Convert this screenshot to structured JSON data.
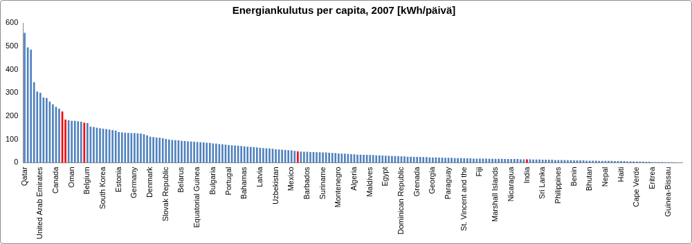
{
  "chart_data": {
    "type": "bar",
    "title": "Energiankulutus per capita, 2007 [kWh/päivä]",
    "categories": [
      "Qatar",
      null,
      null,
      null,
      null,
      "United Arab Emirates",
      null,
      null,
      null,
      null,
      "Canada",
      null,
      null,
      null,
      null,
      "Oman",
      null,
      null,
      null,
      null,
      "Belgium",
      null,
      null,
      null,
      null,
      "South Korea",
      null,
      null,
      null,
      null,
      "Estonia",
      null,
      null,
      null,
      null,
      "Germany",
      null,
      null,
      null,
      null,
      "Denmark",
      null,
      null,
      null,
      null,
      "Slovak Republic",
      null,
      null,
      null,
      null,
      "Belarus",
      null,
      null,
      null,
      null,
      "Equatorial Guinea",
      null,
      null,
      null,
      null,
      "Bulgaria",
      null,
      null,
      null,
      null,
      "Portugal",
      null,
      null,
      null,
      null,
      "Bahamas",
      null,
      null,
      null,
      null,
      "Latvia",
      null,
      null,
      null,
      null,
      "Uzbekistan",
      null,
      null,
      null,
      null,
      "Mexico",
      null,
      null,
      null,
      null,
      "Barbados",
      null,
      null,
      null,
      null,
      "Suriname",
      null,
      null,
      null,
      null,
      "Montenegro",
      null,
      null,
      null,
      null,
      "Algeria",
      null,
      null,
      null,
      null,
      "Maldives",
      null,
      null,
      null,
      null,
      "Egypt",
      null,
      null,
      null,
      null,
      "Dominican Republic",
      null,
      null,
      null,
      null,
      "Grenada",
      null,
      null,
      null,
      null,
      "Georgia",
      null,
      null,
      null,
      null,
      "Paraguay",
      null,
      null,
      null,
      null,
      "St. Vincent and the",
      null,
      null,
      null,
      null,
      "Fiji",
      null,
      null,
      null,
      null,
      "Marshall Islands",
      null,
      null,
      null,
      null,
      "Nicaragua",
      null,
      null,
      null,
      null,
      "India",
      null,
      null,
      null,
      null,
      "Sri Lanka",
      null,
      null,
      null,
      null,
      "Philippines",
      null,
      null,
      null,
      null,
      "Benin",
      null,
      null,
      null,
      null,
      "Bhutan",
      null,
      null,
      null,
      null,
      "Nepal",
      null,
      null,
      null,
      null,
      "Haiti",
      null,
      null,
      null,
      null,
      "Cape Verde",
      null,
      null,
      null,
      null,
      "Eritrea",
      null,
      null,
      null,
      null,
      "Guinea-Bissau",
      null,
      null,
      null,
      null
    ],
    "values": [
      557,
      495,
      485,
      345,
      305,
      300,
      280,
      278,
      262,
      250,
      240,
      232,
      220,
      185,
      182,
      180,
      180,
      178,
      176,
      172,
      170,
      155,
      153,
      150,
      148,
      146,
      144,
      142,
      140,
      138,
      132,
      130,
      129,
      128,
      127,
      127,
      126,
      125,
      122,
      118,
      112,
      110,
      108,
      107,
      105,
      102,
      100,
      98,
      97,
      96,
      94,
      93,
      92,
      91,
      90,
      89,
      88,
      87,
      86,
      85,
      83,
      82,
      80,
      79,
      78,
      76,
      75,
      74,
      73,
      72,
      70,
      69,
      68,
      67,
      66,
      64,
      63,
      62,
      61,
      60,
      58,
      57,
      56,
      55,
      54,
      53,
      51,
      49,
      48,
      47,
      47,
      46,
      46,
      45,
      45,
      44,
      44,
      43,
      42,
      41,
      40,
      39,
      39,
      38,
      37,
      36,
      35,
      35,
      34,
      34,
      33,
      33,
      32,
      32,
      31,
      30,
      30,
      29,
      29,
      28,
      27,
      27,
      26,
      26,
      25,
      25,
      25,
      24,
      24,
      23,
      23,
      23,
      22,
      22,
      21,
      21,
      21,
      20,
      20,
      20,
      19,
      19,
      19,
      18,
      18,
      18,
      18,
      18,
      17,
      17,
      17,
      17,
      17,
      16,
      16,
      16,
      16,
      16,
      15,
      15,
      15,
      15,
      14,
      14,
      14,
      13,
      13,
      13,
      13,
      12,
      12,
      12,
      12,
      11,
      11,
      10,
      10,
      10,
      10,
      9,
      9,
      9,
      9,
      8,
      8,
      8,
      8,
      8,
      7,
      7,
      7,
      7,
      6,
      6,
      6,
      5,
      5,
      5,
      4,
      4,
      3,
      3,
      3,
      3,
      2,
      2,
      2,
      2,
      1,
      1
    ],
    "colors": [
      "#4f81bd",
      "#4f81bd",
      "#4f81bd",
      "#4f81bd",
      "#4f81bd",
      "#4f81bd",
      "#4f81bd",
      "#4f81bd",
      "#4f81bd",
      "#4f81bd",
      "#4f81bd",
      "#4f81bd",
      "#ff0000",
      "#ff0000",
      "#4f81bd",
      "#4f81bd",
      "#4f81bd",
      "#4f81bd",
      "#4f81bd",
      "#ff0000",
      "#4f81bd",
      "#4f81bd",
      "#4f81bd",
      "#4f81bd",
      "#4f81bd",
      "#4f81bd",
      "#4f81bd",
      "#4f81bd",
      "#4f81bd",
      "#4f81bd",
      "#4f81bd",
      "#4f81bd",
      "#4f81bd",
      "#4f81bd",
      "#4f81bd",
      "#4f81bd",
      "#4f81bd",
      "#4f81bd",
      "#4f81bd",
      "#4f81bd",
      "#4f81bd",
      "#4f81bd",
      "#4f81bd",
      "#4f81bd",
      "#4f81bd",
      "#4f81bd",
      "#4f81bd",
      "#4f81bd",
      "#4f81bd",
      "#4f81bd",
      "#4f81bd",
      "#4f81bd",
      "#4f81bd",
      "#4f81bd",
      "#4f81bd",
      "#4f81bd",
      "#4f81bd",
      "#4f81bd",
      "#4f81bd",
      "#4f81bd",
      "#4f81bd",
      "#4f81bd",
      "#4f81bd",
      "#4f81bd",
      "#4f81bd",
      "#4f81bd",
      "#4f81bd",
      "#4f81bd",
      "#4f81bd",
      "#4f81bd",
      "#4f81bd",
      "#4f81bd",
      "#4f81bd",
      "#4f81bd",
      "#4f81bd",
      "#4f81bd",
      "#4f81bd",
      "#4f81bd",
      "#4f81bd",
      "#4f81bd",
      "#4f81bd",
      "#4f81bd",
      "#4f81bd",
      "#4f81bd",
      "#4f81bd",
      "#4f81bd",
      "#4f81bd",
      "#ff0000",
      "#4f81bd",
      "#4f81bd",
      "#4f81bd",
      "#4f81bd",
      "#4f81bd",
      "#4f81bd",
      "#4f81bd",
      "#4f81bd",
      "#4f81bd",
      "#4f81bd",
      "#4f81bd",
      "#4f81bd",
      "#4f81bd",
      "#4f81bd",
      "#4f81bd",
      "#4f81bd",
      "#4f81bd",
      "#4f81bd",
      "#4f81bd",
      "#4f81bd",
      "#4f81bd",
      "#4f81bd",
      "#4f81bd",
      "#4f81bd",
      "#4f81bd",
      "#4f81bd",
      "#4f81bd",
      "#4f81bd",
      "#4f81bd",
      "#4f81bd",
      "#4f81bd",
      "#4f81bd",
      "#4f81bd",
      "#4f81bd",
      "#4f81bd",
      "#4f81bd",
      "#4f81bd",
      "#4f81bd",
      "#4f81bd",
      "#4f81bd",
      "#4f81bd",
      "#4f81bd",
      "#4f81bd",
      "#4f81bd",
      "#4f81bd",
      "#4f81bd",
      "#4f81bd",
      "#4f81bd",
      "#4f81bd",
      "#4f81bd",
      "#4f81bd",
      "#4f81bd",
      "#4f81bd",
      "#4f81bd",
      "#4f81bd",
      "#4f81bd",
      "#4f81bd",
      "#4f81bd",
      "#4f81bd",
      "#4f81bd",
      "#4f81bd",
      "#4f81bd",
      "#4f81bd",
      "#4f81bd",
      "#4f81bd",
      "#4f81bd",
      "#4f81bd",
      "#4f81bd",
      "#4f81bd",
      "#4f81bd",
      "#4f81bd",
      "#4f81bd",
      "#ff0000",
      "#4f81bd",
      "#4f81bd",
      "#4f81bd",
      "#4f81bd",
      "#4f81bd",
      "#4f81bd",
      "#4f81bd",
      "#4f81bd",
      "#4f81bd",
      "#4f81bd",
      "#4f81bd",
      "#4f81bd",
      "#4f81bd",
      "#4f81bd",
      "#4f81bd",
      "#4f81bd",
      "#4f81bd",
      "#4f81bd",
      "#4f81bd",
      "#4f81bd",
      "#4f81bd",
      "#4f81bd",
      "#4f81bd",
      "#4f81bd",
      "#4f81bd",
      "#4f81bd",
      "#4f81bd",
      "#4f81bd",
      "#4f81bd",
      "#4f81bd",
      "#4f81bd",
      "#4f81bd",
      "#4f81bd",
      "#4f81bd",
      "#4f81bd",
      "#4f81bd",
      "#4f81bd",
      "#4f81bd",
      "#4f81bd",
      "#4f81bd",
      "#4f81bd",
      "#4f81bd",
      "#4f81bd",
      "#4f81bd",
      "#4f81bd",
      "#4f81bd",
      "#4f81bd",
      "#4f81bd",
      "#4f81bd"
    ],
    "ylim": [
      0,
      600
    ],
    "yticks": [
      0,
      100,
      200,
      300,
      400,
      500,
      600
    ],
    "grid": false
  }
}
